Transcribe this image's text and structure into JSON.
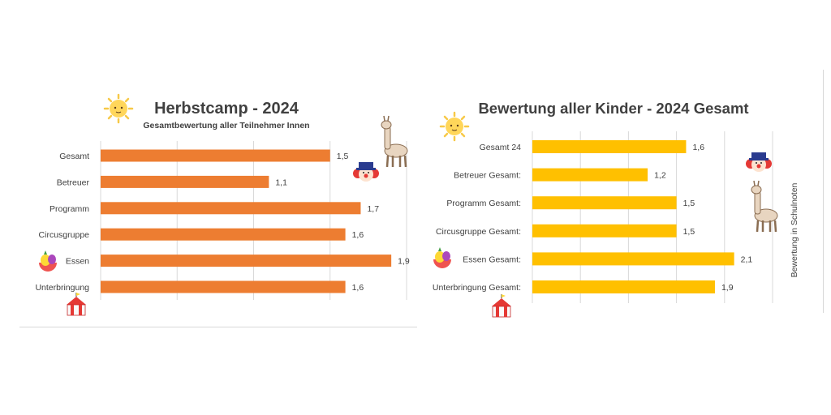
{
  "chart_data": [
    {
      "type": "bar",
      "title": "Herbstcamp - 2024",
      "subtitle": "Gesamtbewertung aller Teilnehmer Innen",
      "categories": [
        "Gesamt",
        "Betreuer",
        "Programm",
        "Circusgruppe",
        "Essen",
        "Unterbringung"
      ],
      "values": [
        1.5,
        1.1,
        1.7,
        1.6,
        1.9,
        1.6
      ],
      "value_labels": [
        "1,5",
        "1,1",
        "1,7",
        "1,6",
        "1,9",
        "1,6"
      ],
      "orientation": "horizontal",
      "xlim": [
        0,
        2
      ],
      "grid": true,
      "bar_color": "#ED7D31",
      "ylabel": ""
    },
    {
      "type": "bar",
      "title": "Bewertung aller Kinder - 2024 Gesamt",
      "categories": [
        "Gesamt 24",
        "Betreuer Gesamt:",
        "Programm Gesamt:",
        "Circusgruppe Gesamt:",
        "Essen Gesamt:",
        "Unterbringung Gesamt:"
      ],
      "values": [
        1.6,
        1.2,
        1.5,
        1.5,
        2.1,
        1.9
      ],
      "value_labels": [
        "1,6",
        "1,2",
        "1,5",
        "1,5",
        "2,1",
        "1,9"
      ],
      "orientation": "horizontal",
      "xlim": [
        0,
        2.5
      ],
      "grid": true,
      "bar_color": "#FFC000",
      "ylabel": "Bewertung in Schulnoten"
    }
  ],
  "colors": {
    "left_bar": "#ED7D31",
    "right_bar": "#FFC000",
    "gridline": "#d9d9d9",
    "title_text": "#404040",
    "label_text": "#404040"
  },
  "decorations": [
    "sun-icon",
    "sun-icon",
    "llama-icon",
    "llama-icon",
    "clown-icon",
    "clown-icon",
    "fruit-icon",
    "fruit-icon",
    "circus-tent-icon",
    "circus-tent-icon"
  ]
}
